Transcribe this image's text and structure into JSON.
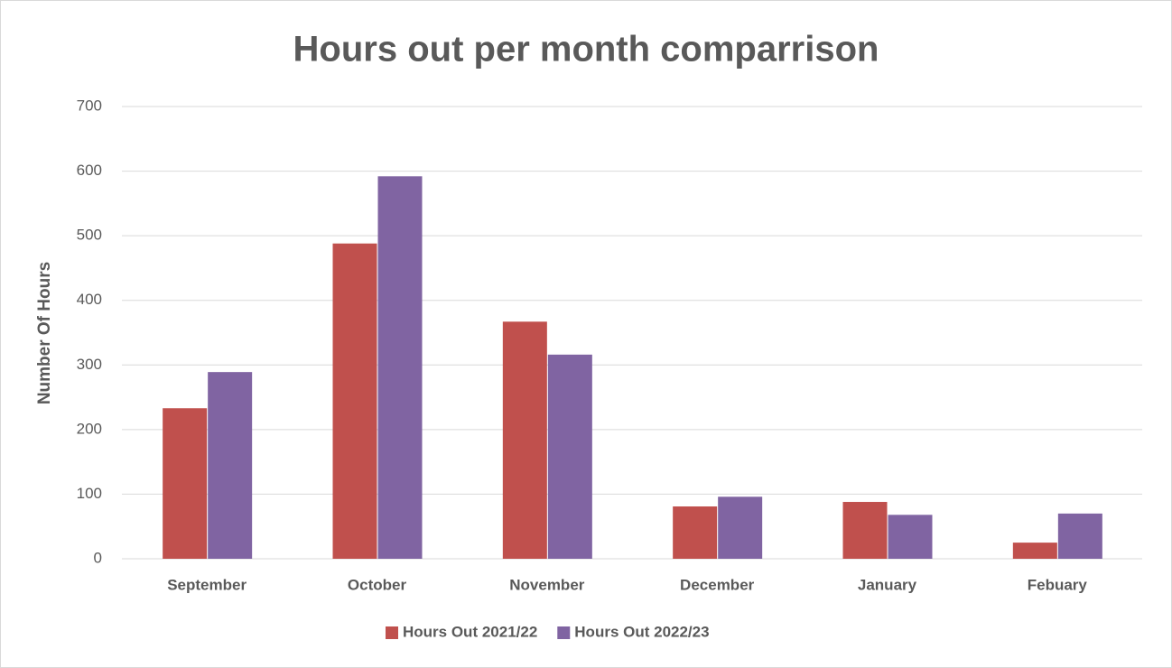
{
  "chart_data": {
    "type": "bar",
    "title": "Hours out per month comparrison",
    "y_label": "Number Of Hours",
    "categories": [
      "September",
      "October",
      "November",
      "December",
      "January",
      "Febuary"
    ],
    "series": [
      {
        "name": "Hours Out 2021/22",
        "color": "#c0504d",
        "values": [
          233,
          488,
          367,
          81,
          88,
          25
        ]
      },
      {
        "name": "Hours Out 2022/23",
        "color": "#8064a2",
        "values": [
          289,
          592,
          316,
          96,
          68,
          70
        ]
      }
    ],
    "ylim": [
      0,
      700
    ],
    "yticks": [
      0,
      100,
      200,
      300,
      400,
      500,
      600,
      700
    ],
    "grid": true,
    "legend": "bottom"
  }
}
